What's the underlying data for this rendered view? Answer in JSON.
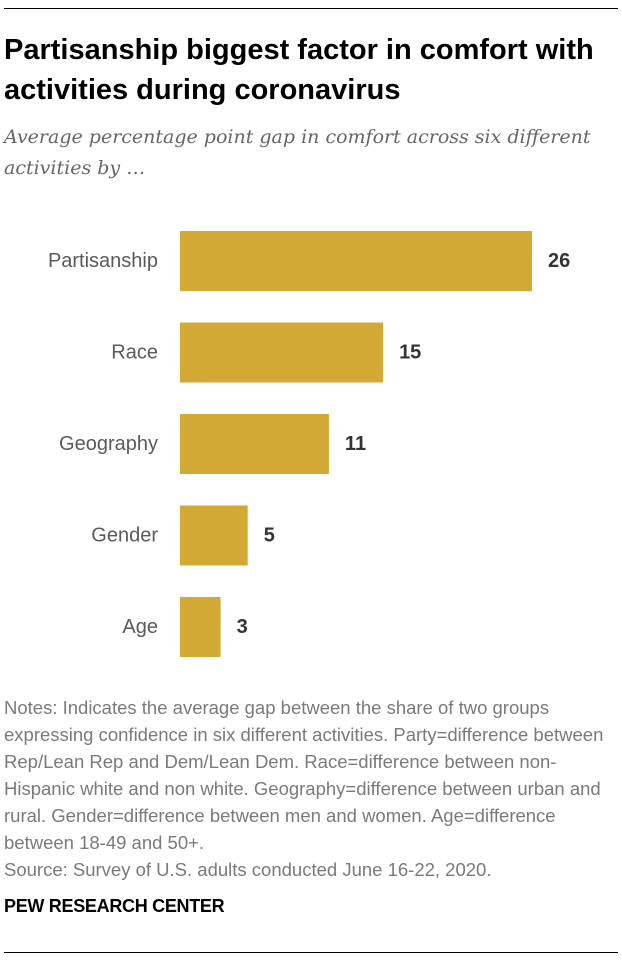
{
  "chart_data": {
    "type": "bar",
    "orientation": "horizontal",
    "title": "Partisanship biggest factor in comfort with activities during coronavirus",
    "subtitle": "Average percentage point gap in comfort across six different activities by …",
    "categories": [
      "Partisanship",
      "Race",
      "Geography",
      "Gender",
      "Age"
    ],
    "values": [
      26,
      15,
      11,
      5,
      3
    ],
    "value_labels": [
      "26",
      "15",
      "11",
      "5",
      "3"
    ],
    "xlabel": "",
    "ylabel": "",
    "xlim": [
      0,
      26
    ],
    "grid": false,
    "legend": "none",
    "bar_color": "#d3a935"
  },
  "notes": {
    "text": "Notes: Indicates the average gap between the share of two groups expressing confidence in six different activities. Party=difference between Rep/Lean Rep and Dem/Lean Dem. Race=difference between non-Hispanic white and non white. Geography=difference between urban and rural. Gender=difference between men and women. Age=difference between 18-49 and 50+.",
    "source": "Source: Survey of U.S. adults conducted June 16-22, 2020."
  },
  "brand": "PEW RESEARCH CENTER",
  "colors": {
    "title": "#000000",
    "subtitle": "#666666",
    "category_label": "#5a5a5a",
    "value_label": "#333333",
    "notes": "#7a7a7a"
  }
}
